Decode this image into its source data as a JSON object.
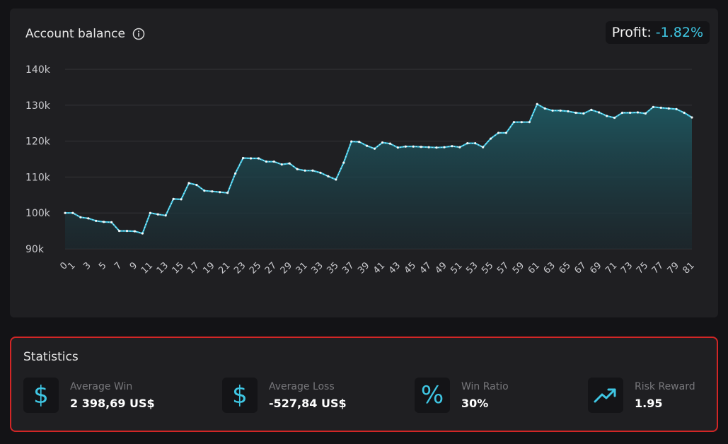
{
  "chart_data": {
    "type": "area",
    "title": "Account balance",
    "profit_label": "Profit:",
    "profit_value": "-1.82%",
    "y_ticks": [
      "90k",
      "100k",
      "110k",
      "120k",
      "130k",
      "140k"
    ],
    "y_tick_values": [
      90000,
      100000,
      110000,
      120000,
      130000,
      140000
    ],
    "ylim": [
      90000,
      140000
    ],
    "grid": true,
    "x_tick_labels": [
      "0",
      "1",
      "3",
      "5",
      "7",
      "9",
      "11",
      "13",
      "15",
      "17",
      "19",
      "21",
      "23",
      "25",
      "27",
      "29",
      "31",
      "33",
      "35",
      "37",
      "39",
      "41",
      "43",
      "45",
      "47",
      "49",
      "51",
      "53",
      "55",
      "57",
      "59",
      "61",
      "63",
      "65",
      "67",
      "69",
      "71",
      "73",
      "75",
      "77",
      "79",
      "81"
    ],
    "x_tick_values": [
      0,
      1,
      3,
      5,
      7,
      9,
      11,
      13,
      15,
      17,
      19,
      21,
      23,
      25,
      27,
      29,
      31,
      33,
      35,
      37,
      39,
      41,
      43,
      45,
      47,
      49,
      51,
      53,
      55,
      57,
      59,
      61,
      63,
      65,
      67,
      69,
      71,
      73,
      75,
      77,
      79,
      81
    ],
    "x": [
      0,
      1,
      2,
      3,
      4,
      5,
      6,
      7,
      8,
      9,
      10,
      11,
      12,
      13,
      14,
      15,
      16,
      17,
      18,
      19,
      20,
      21,
      22,
      23,
      24,
      25,
      26,
      27,
      28,
      29,
      30,
      31,
      32,
      33,
      34,
      35,
      36,
      37,
      38,
      39,
      40,
      41,
      42,
      43,
      44,
      45,
      46,
      47,
      48,
      49,
      50,
      51,
      52,
      53,
      54,
      55,
      56,
      57,
      58,
      59,
      60,
      61,
      62,
      63,
      64,
      65,
      66,
      67,
      68,
      69,
      70,
      71,
      72,
      73,
      74,
      75,
      76,
      77,
      78,
      79,
      80,
      81
    ],
    "values": [
      100000,
      100000,
      98800,
      98500,
      97800,
      97500,
      97400,
      95000,
      95000,
      94900,
      94300,
      100000,
      99600,
      99300,
      103900,
      103800,
      108300,
      107800,
      106200,
      106000,
      105800,
      105600,
      111000,
      115300,
      115200,
      115200,
      114300,
      114300,
      113500,
      113800,
      112200,
      111800,
      111800,
      111200,
      110200,
      109300,
      114000,
      119900,
      119800,
      118700,
      117900,
      119600,
      119300,
      118200,
      118500,
      118500,
      118400,
      118300,
      118200,
      118300,
      118600,
      118300,
      119400,
      119400,
      118300,
      120700,
      122300,
      122300,
      125300,
      125300,
      125300,
      130300,
      129100,
      128500,
      128500,
      128300,
      127900,
      127700,
      128700,
      128000,
      127000,
      126500,
      127900,
      127900,
      128000,
      127700,
      129500,
      129300,
      129100,
      128900,
      127900,
      126600
    ]
  },
  "statistics": {
    "title": "Statistics",
    "items": [
      {
        "label": "Average Win",
        "value": "2 398,69 US$",
        "icon": "$"
      },
      {
        "label": "Average Loss",
        "value": "-527,84 US$",
        "icon": "$"
      },
      {
        "label": "Win Ratio",
        "value": "30%",
        "icon": "%"
      },
      {
        "label": "Risk Reward",
        "value": "1.95",
        "icon": "trend-up-icon"
      }
    ]
  },
  "colors": {
    "accent": "#3fc6e3",
    "background": "#131316",
    "panel": "#1f1f22",
    "highlight_border": "#d22626"
  }
}
